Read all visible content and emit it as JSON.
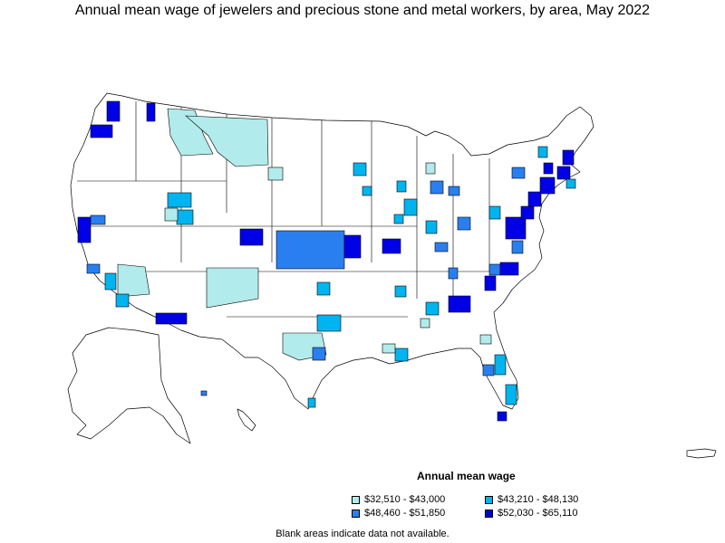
{
  "title": "Annual mean wage of jewelers and precious stone and metal workers, by area, May 2022",
  "legend": {
    "title": "Annual mean wage",
    "items": [
      {
        "label": "$32,510 - $43,000",
        "color": "#b2ebeb"
      },
      {
        "label": "$43,210 - $48,130",
        "color": "#00b4f0"
      },
      {
        "label": "$48,460 - $51,850",
        "color": "#2a7ff0"
      },
      {
        "label": "$52,030 - $65,110",
        "color": "#0000e6"
      }
    ]
  },
  "note": "Blank areas indicate data not available.",
  "map_data": {
    "regions": [
      "contiguous-us",
      "alaska",
      "hawaii",
      "puerto-rico"
    ],
    "highlighted_areas": [
      {
        "area": "Seattle-Tacoma-Bellevue, WA",
        "class": 3
      },
      {
        "area": "Portland-Vancouver-Hillsboro, OR-WA",
        "class": 3
      },
      {
        "area": "Spokane, WA",
        "class": 3
      },
      {
        "area": "Western Montana nonmetropolitan area",
        "class": 0
      },
      {
        "area": "Eastern Montana nonmetropolitan area",
        "class": 0
      },
      {
        "area": "Salt Lake City, UT",
        "class": 1
      },
      {
        "area": "Provo-Orem, UT",
        "class": 1
      },
      {
        "area": "Denver-Aurora-Lakewood, CO",
        "class": 3
      },
      {
        "area": "Kansas nonmetropolitan area",
        "class": 2
      },
      {
        "area": "Kansas City, MO-KS",
        "class": 3
      },
      {
        "area": "St. Louis, MO-IL",
        "class": 3
      },
      {
        "area": "Arizona nonmetropolitan area",
        "class": 0
      },
      {
        "area": "Tucson, AZ",
        "class": 3
      },
      {
        "area": "New Mexico nonmetropolitan area",
        "class": 0
      },
      {
        "area": "San Francisco-Oakland-Hayward, CA",
        "class": 3
      },
      {
        "area": "Los Angeles-Long Beach-Anaheim, CA",
        "class": 2
      },
      {
        "area": "San Diego-Carlsbad, CA",
        "class": 1
      },
      {
        "area": "Dallas-Fort Worth-Arlington, TX",
        "class": 1
      },
      {
        "area": "Houston-The Woodlands-Sugar Land, TX",
        "class": 2
      },
      {
        "area": "Texas nonmetropolitan area",
        "class": 0
      },
      {
        "area": "Atlanta-Sandy Springs-Roswell, GA",
        "class": 3
      },
      {
        "area": "Nashville-Davidson--Murfreesboro--Franklin, TN",
        "class": 1
      },
      {
        "area": "Miami-Fort Lauderdale-West Palm Beach, FL",
        "class": 1
      },
      {
        "area": "Tampa-St. Petersburg-Clearwater, FL",
        "class": 2
      },
      {
        "area": "Orlando-Kissimmee-Sanford, FL",
        "class": 1
      },
      {
        "area": "Washington-Arlington-Alexandria, DC-VA-MD-WV",
        "class": 3
      },
      {
        "area": "Baltimore-Columbia-Towson, MD",
        "class": 3
      },
      {
        "area": "Philadelphia-Camden-Wilmington, PA-NJ-DE-MD",
        "class": 3
      },
      {
        "area": "New York-Newark-Jersey City, NY-NJ-PA",
        "class": 3
      },
      {
        "area": "Providence-Warwick, RI-MA",
        "class": 3
      },
      {
        "area": "Boston-Cambridge-Nashua, MA-NH",
        "class": 3
      },
      {
        "area": "Chicago-Naperville-Elgin, IL-IN-WI",
        "class": 1
      },
      {
        "area": "Minneapolis-St. Paul-Bloomington, MN-WI",
        "class": 1
      },
      {
        "area": "Indianapolis-Carmel-Anderson, IN",
        "class": 1
      },
      {
        "area": "Columbus, OH",
        "class": 2
      },
      {
        "area": "Pittsburgh, PA",
        "class": 1
      },
      {
        "area": "Raleigh, NC",
        "class": 3
      },
      {
        "area": "Charlotte-Concord-Gastonia, NC-SC",
        "class": 3
      }
    ]
  }
}
